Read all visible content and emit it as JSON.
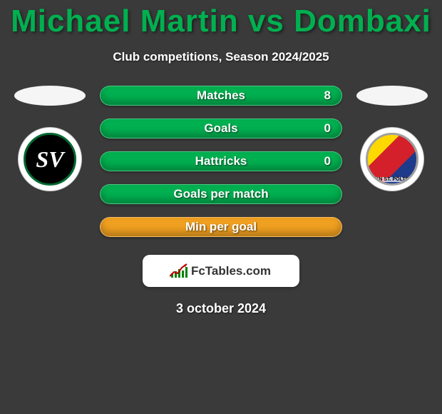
{
  "header": {
    "title": "Michael Martin vs Dombaxi",
    "title_color": "#00b050",
    "subtitle": "Club competitions, Season 2024/2025"
  },
  "left_club": {
    "name": "SV Ried",
    "abbrev": "SV",
    "badge_bg": "#000000",
    "badge_border": "#006830"
  },
  "right_club": {
    "name": "SKN St. Pölten",
    "badge_text": "SKN ST. PÖLTEN"
  },
  "stats": [
    {
      "label": "Matches",
      "value": "8",
      "bar_type": "green"
    },
    {
      "label": "Goals",
      "value": "0",
      "bar_type": "green"
    },
    {
      "label": "Hattricks",
      "value": "0",
      "bar_type": "green"
    },
    {
      "label": "Goals per match",
      "value": "",
      "bar_type": "green"
    },
    {
      "label": "Min per goal",
      "value": "",
      "bar_type": "orange"
    }
  ],
  "brand": {
    "text": "FcTables.com",
    "chart_bars": [
      6,
      9,
      12,
      10,
      15
    ]
  },
  "footer": {
    "date": "3 october 2024"
  },
  "colors": {
    "background": "#3a3a3a",
    "bar_green": "#00b050",
    "bar_orange": "#f0a020",
    "text_white": "#ffffff"
  }
}
